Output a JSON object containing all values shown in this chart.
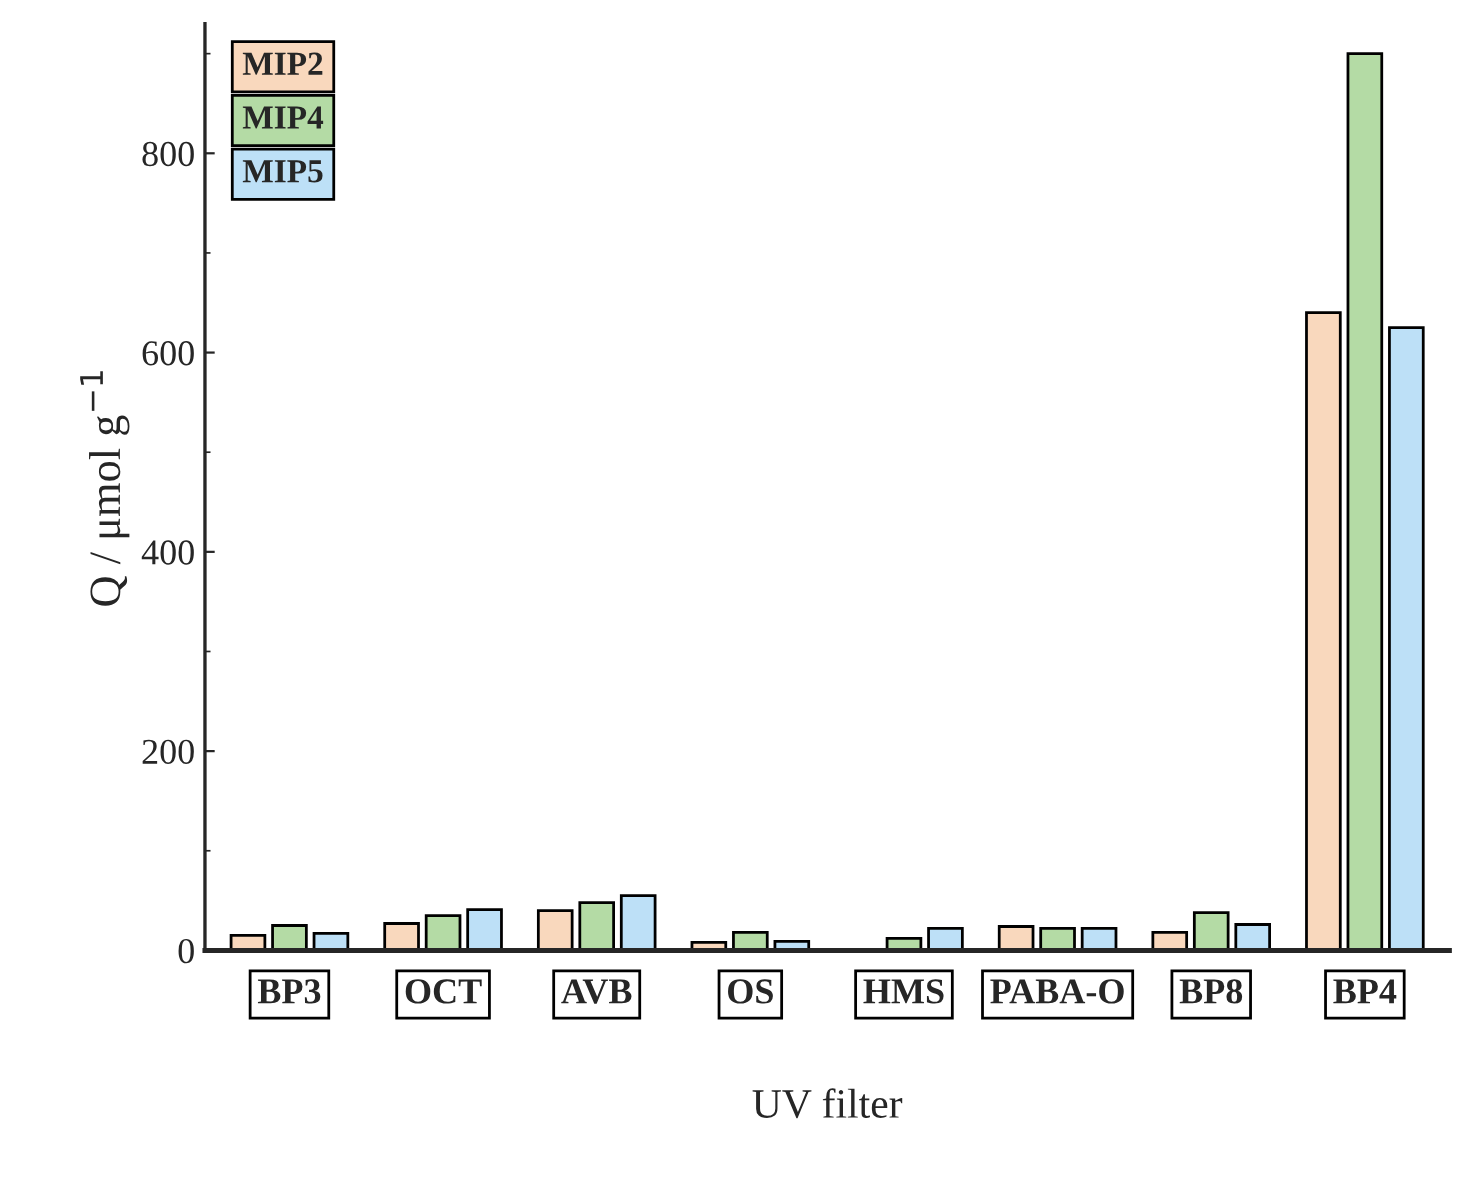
{
  "chart_data": {
    "type": "bar",
    "xlabel": "UV filter",
    "ylabel": "Q / μmol g$^{−1}$",
    "categories": [
      "BP3",
      "OCT",
      "AVB",
      "OS",
      "HMS",
      "PABA-O",
      "BP8",
      "BP4"
    ],
    "series": [
      {
        "name": "MIP2",
        "color": "#f9d8bd",
        "values": [
          15,
          27,
          40,
          8,
          null,
          24,
          18,
          640
        ]
      },
      {
        "name": "MIP4",
        "color": "#b4dba5",
        "values": [
          25,
          35,
          48,
          18,
          12,
          22,
          38,
          900
        ]
      },
      {
        "name": "MIP5",
        "color": "#bde0f7",
        "values": [
          17,
          41,
          55,
          9,
          22,
          22,
          26,
          625
        ]
      }
    ],
    "ylim": [
      0,
      930
    ],
    "yticks": [
      0,
      200,
      400,
      600,
      800
    ],
    "grid": false,
    "legend": "top left"
  }
}
